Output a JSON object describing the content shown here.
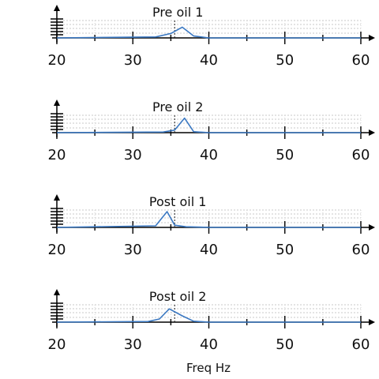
{
  "chart_data": {
    "type": "line",
    "xlabel": "Freq Hz",
    "xlim": [
      20,
      60
    ],
    "xticks": [
      20,
      30,
      40,
      50,
      60
    ],
    "marker_line_x": 35.5,
    "line_color": "#3a78c2",
    "panels": [
      {
        "title": "Pre oil 1",
        "series": [
          {
            "x": [
              20,
              33,
              35,
              36.5,
              38,
              40,
              60
            ],
            "y": [
              0,
              0.03,
              0.14,
              0.34,
              0.06,
              0,
              0
            ]
          }
        ]
      },
      {
        "title": "Pre oil 2",
        "series": [
          {
            "x": [
              20,
              34,
              35.5,
              36.8,
              38,
              40,
              60
            ],
            "y": [
              0,
              0.02,
              0.08,
              0.46,
              0.03,
              0,
              0
            ]
          }
        ]
      },
      {
        "title": "Post oil 1",
        "series": [
          {
            "x": [
              20,
              33,
              34.5,
              35.5,
              37,
              40,
              60
            ],
            "y": [
              0,
              0.05,
              0.5,
              0.07,
              0.02,
              0,
              0
            ]
          }
        ]
      },
      {
        "title": "Post oil 2",
        "series": [
          {
            "x": [
              20,
              32,
              33.5,
              34.8,
              36.5,
              38,
              40,
              60
            ],
            "y": [
              0,
              0.02,
              0.1,
              0.42,
              0.2,
              0.03,
              0,
              0
            ]
          }
        ]
      }
    ]
  }
}
